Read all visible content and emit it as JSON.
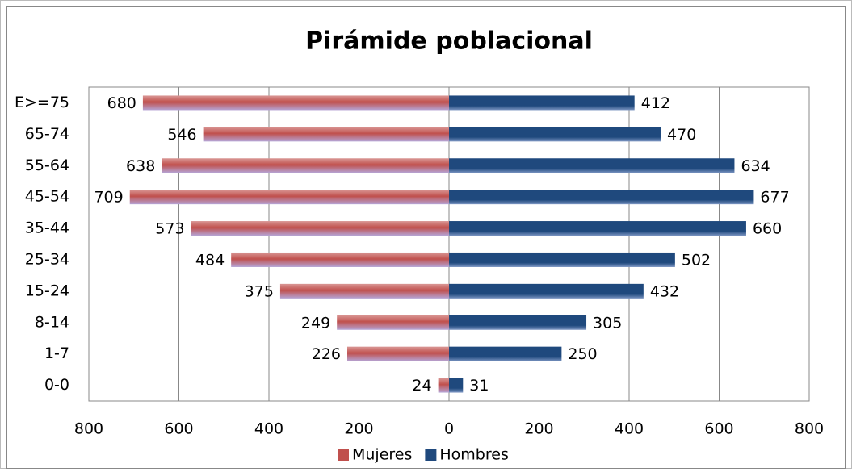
{
  "chart_data": {
    "type": "pyramid",
    "title": "Pirámide poblacional",
    "categories": [
      "E>=75",
      "65-74",
      "55-64",
      "45-54",
      "35-44",
      "25-34",
      "15-24",
      "8-14",
      "1-7",
      "0-0"
    ],
    "series": [
      {
        "name": "Mujeres",
        "color": "#c0504d",
        "side": "left",
        "values": [
          680,
          546,
          638,
          709,
          573,
          484,
          375,
          249,
          226,
          24
        ]
      },
      {
        "name": "Hombres",
        "color": "#1f497d",
        "side": "right",
        "values": [
          412,
          470,
          634,
          677,
          660,
          502,
          432,
          305,
          250,
          31
        ]
      }
    ],
    "xlim": [
      -800,
      800
    ],
    "xticks": [
      {
        "value": -800,
        "label": "800"
      },
      {
        "value": -600,
        "label": "600"
      },
      {
        "value": -400,
        "label": "400"
      },
      {
        "value": -200,
        "label": "200"
      },
      0,
      200,
      400,
      600,
      800
    ],
    "grid": true,
    "legend": "bottom"
  }
}
